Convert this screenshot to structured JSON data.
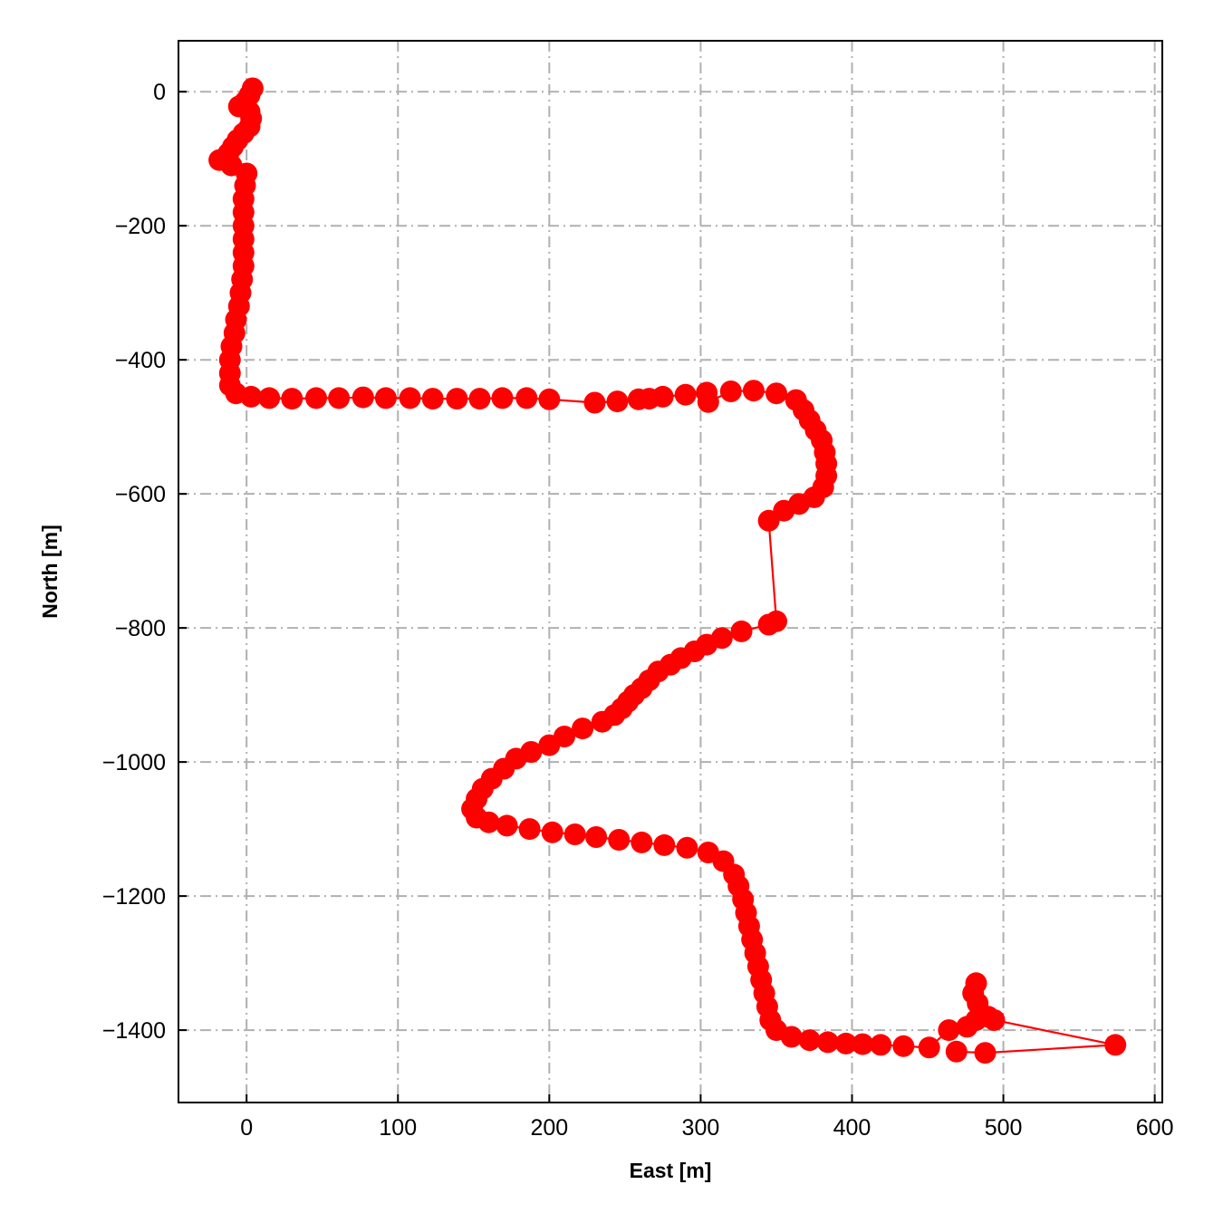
{
  "chart_data": {
    "type": "line",
    "title": "",
    "xlabel": "East [m]",
    "ylabel": "North [m]",
    "xlim": [
      -45,
      605
    ],
    "ylim": [
      -1508,
      76
    ],
    "xticks": [
      0,
      100,
      200,
      300,
      400,
      500,
      600
    ],
    "yticks": [
      0,
      -200,
      -400,
      -600,
      -800,
      -1000,
      -1200,
      -1400
    ],
    "xtick_labels": [
      "0",
      "100",
      "200",
      "300",
      "400",
      "500",
      "600"
    ],
    "ytick_labels": [
      "0",
      "−200",
      "−400",
      "−600",
      "−800",
      "−1000",
      "−1200",
      "−1400"
    ],
    "grid": true,
    "grid_style": "dash-dot",
    "marker": "circle",
    "colors": {
      "series": "#ff0000",
      "grid": "#b0b0b0",
      "axis": "#000000"
    },
    "series": [
      {
        "points": [
          [
            4,
            5
          ],
          [
            2,
            -5
          ],
          [
            -1,
            -15
          ],
          [
            -5,
            -22
          ],
          [
            2,
            -30
          ],
          [
            3,
            -40
          ],
          [
            2,
            -52
          ],
          [
            -2,
            -62
          ],
          [
            -6,
            -72
          ],
          [
            -9,
            -82
          ],
          [
            -12,
            -92
          ],
          [
            -18,
            -102
          ],
          [
            -10,
            -110
          ],
          [
            0,
            -122
          ],
          [
            -1,
            -140
          ],
          [
            -2,
            -160
          ],
          [
            -2,
            -180
          ],
          [
            -2,
            -200
          ],
          [
            -2,
            -220
          ],
          [
            -2,
            -240
          ],
          [
            -2,
            -260
          ],
          [
            -3,
            -280
          ],
          [
            -4,
            -300
          ],
          [
            -5,
            -320
          ],
          [
            -7,
            -340
          ],
          [
            -8,
            -360
          ],
          [
            -10,
            -380
          ],
          [
            -11,
            -400
          ],
          [
            -11,
            -420
          ],
          [
            -11,
            -438
          ],
          [
            -7,
            -450
          ],
          [
            3,
            -455
          ],
          [
            15,
            -457
          ],
          [
            30,
            -458
          ],
          [
            46,
            -457
          ],
          [
            61,
            -457
          ],
          [
            77,
            -456
          ],
          [
            92,
            -457
          ],
          [
            108,
            -457
          ],
          [
            123,
            -458
          ],
          [
            139,
            -458
          ],
          [
            154,
            -458
          ],
          [
            169,
            -457
          ],
          [
            185,
            -457
          ],
          [
            200,
            -459
          ],
          [
            230,
            -464
          ],
          [
            245,
            -462
          ],
          [
            259,
            -459
          ],
          [
            266,
            -458
          ],
          [
            275,
            -455
          ],
          [
            290,
            -452
          ],
          [
            304,
            -449
          ],
          [
            305,
            -463
          ],
          [
            320,
            -447
          ],
          [
            335,
            -446
          ],
          [
            350,
            -450
          ],
          [
            363,
            -460
          ],
          [
            368,
            -475
          ],
          [
            372,
            -490
          ],
          [
            376,
            -505
          ],
          [
            380,
            -520
          ],
          [
            382,
            -538
          ],
          [
            383,
            -555
          ],
          [
            383,
            -573
          ],
          [
            381,
            -590
          ],
          [
            375,
            -605
          ],
          [
            365,
            -615
          ],
          [
            355,
            -625
          ],
          [
            345,
            -640
          ],
          [
            350,
            -790
          ],
          [
            345,
            -795
          ],
          [
            327,
            -805
          ],
          [
            314,
            -815
          ],
          [
            304,
            -825
          ],
          [
            296,
            -835
          ],
          [
            287,
            -845
          ],
          [
            280,
            -855
          ],
          [
            272,
            -865
          ],
          [
            266,
            -878
          ],
          [
            261,
            -890
          ],
          [
            256,
            -900
          ],
          [
            252,
            -910
          ],
          [
            248,
            -920
          ],
          [
            243,
            -930
          ],
          [
            235,
            -940
          ],
          [
            222,
            -950
          ],
          [
            210,
            -962
          ],
          [
            200,
            -975
          ],
          [
            188,
            -985
          ],
          [
            178,
            -995
          ],
          [
            170,
            -1010
          ],
          [
            162,
            -1025
          ],
          [
            156,
            -1040
          ],
          [
            152,
            -1055
          ],
          [
            149,
            -1070
          ],
          [
            152,
            -1083
          ],
          [
            160,
            -1090
          ],
          [
            172,
            -1095
          ],
          [
            187,
            -1100
          ],
          [
            202,
            -1105
          ],
          [
            217,
            -1108
          ],
          [
            231,
            -1112
          ],
          [
            246,
            -1116
          ],
          [
            261,
            -1120
          ],
          [
            276,
            -1124
          ],
          [
            291,
            -1128
          ],
          [
            305,
            -1135
          ],
          [
            315,
            -1148
          ],
          [
            322,
            -1168
          ],
          [
            325,
            -1185
          ],
          [
            328,
            -1205
          ],
          [
            330,
            -1225
          ],
          [
            332,
            -1245
          ],
          [
            334,
            -1265
          ],
          [
            336,
            -1285
          ],
          [
            338,
            -1305
          ],
          [
            340,
            -1325
          ],
          [
            342,
            -1345
          ],
          [
            344,
            -1365
          ],
          [
            346,
            -1385
          ],
          [
            350,
            -1400
          ],
          [
            360,
            -1410
          ],
          [
            372,
            -1415
          ],
          [
            384,
            -1418
          ],
          [
            396,
            -1420
          ],
          [
            407,
            -1421
          ],
          [
            419,
            -1422
          ],
          [
            434,
            -1424
          ],
          [
            451,
            -1426
          ],
          [
            464,
            -1400
          ],
          [
            476,
            -1395
          ],
          [
            482,
            -1385
          ],
          [
            486,
            -1378
          ],
          [
            483,
            -1360
          ],
          [
            480,
            -1345
          ],
          [
            482,
            -1330
          ],
          [
            490,
            -1380
          ],
          [
            494,
            -1385
          ],
          [
            574,
            -1422
          ],
          [
            488,
            -1434
          ],
          [
            469,
            -1432
          ]
        ]
      }
    ]
  }
}
